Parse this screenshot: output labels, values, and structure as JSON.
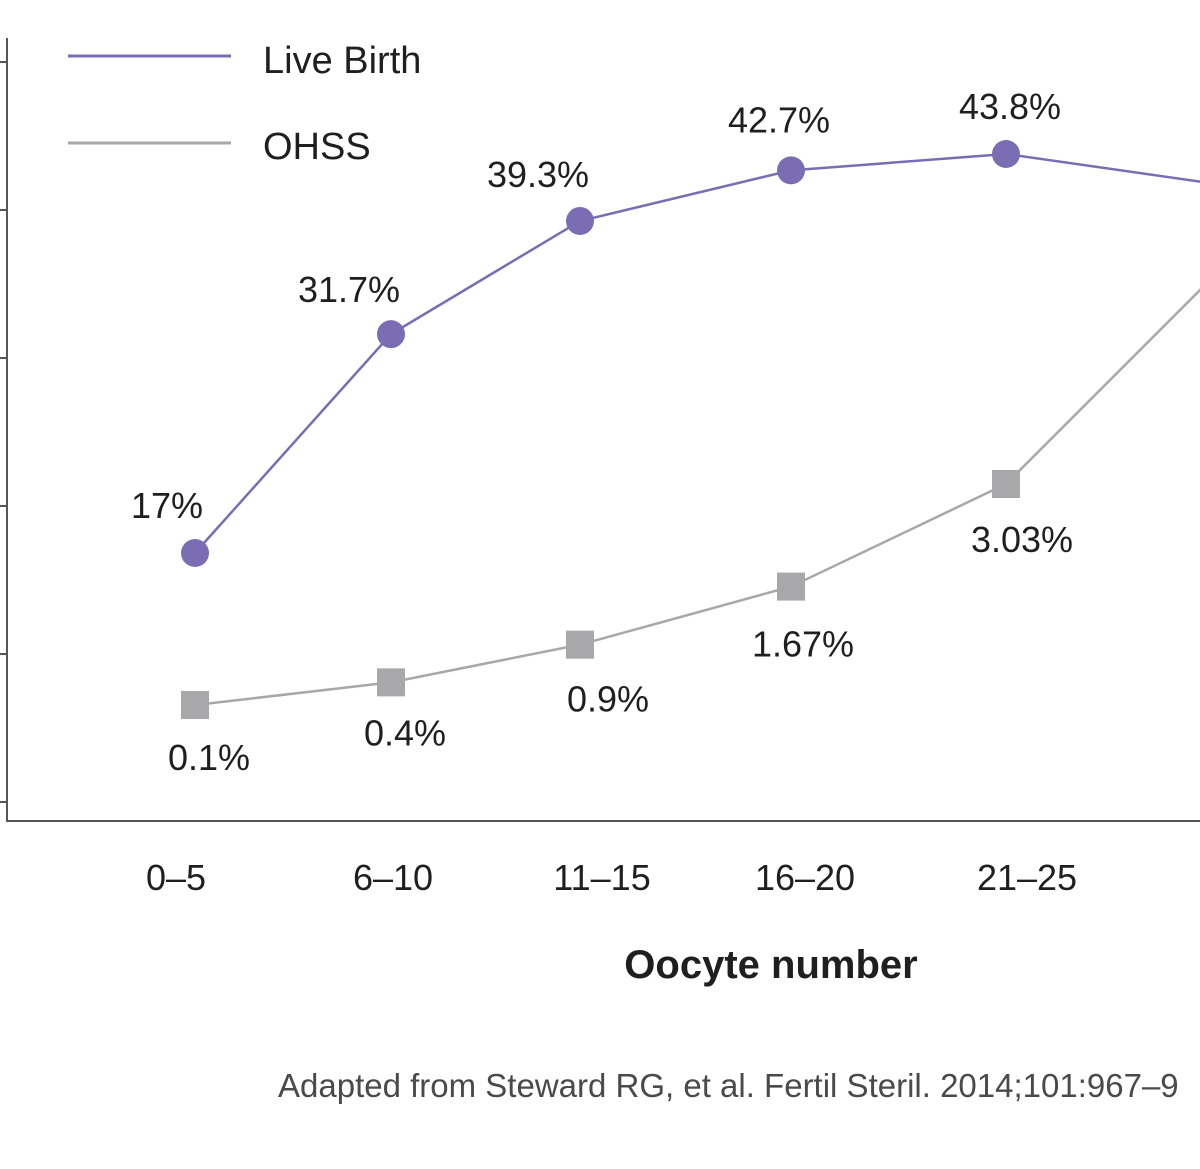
{
  "chart_data": {
    "type": "line",
    "categories": [
      "0–5",
      "6–10",
      "11–15",
      "16–20",
      "21–25",
      ""
    ],
    "xlabel": "Oocyte number",
    "series": [
      {
        "name": "Live Birth",
        "marker": "circle",
        "color": "#7b6db3",
        "values": [
          17.0,
          31.7,
          39.3,
          42.7,
          43.8,
          41.8
        ],
        "labels": [
          "17%",
          "31.7%",
          "39.3%",
          "42.7%",
          "43.8%",
          ""
        ]
      },
      {
        "name": "OHSS",
        "marker": "square",
        "color": "#a8a8aa",
        "values": [
          0.1,
          0.4,
          0.9,
          1.67,
          3.03,
          5.8
        ],
        "labels": [
          "0.1%",
          "0.4%",
          "0.9%",
          "1.67%",
          "3.03%",
          ""
        ]
      }
    ],
    "legend_position": "top-left",
    "grid": false
  },
  "legend": {
    "live_birth": "Live Birth",
    "ohss": "OHSS"
  },
  "source_note": "Adapted from Steward RG, et al. Fertil Steril. 2014;101:967–9"
}
